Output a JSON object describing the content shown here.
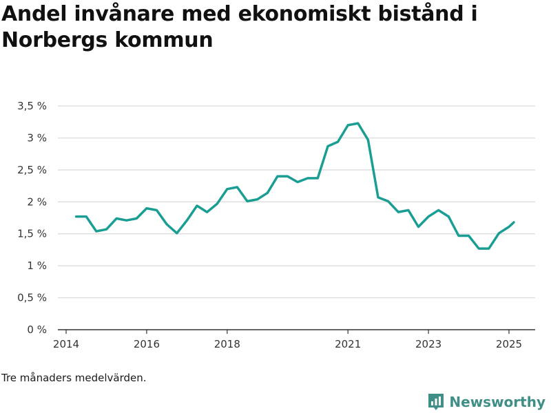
{
  "title": "Andel invånare med ekonomiskt bistånd i Norbergs kommun",
  "note": "Tre månaders medelvärden.",
  "brand": {
    "name": "Newsworthy",
    "icon": "newsworthy-logo-icon",
    "color": "#3f8f86"
  },
  "colors": {
    "line": "#1a9e94",
    "grid": "#d9d9d9",
    "axis": "#333333"
  },
  "chart_data": {
    "type": "line",
    "title": "Andel invånare med ekonomiskt bistånd i Norbergs kommun",
    "xlabel": "",
    "ylabel": "",
    "ylim": [
      0,
      3.5
    ],
    "xlim": [
      2014,
      2025.65
    ],
    "grid": true,
    "y_ticks": [
      0,
      0.5,
      1,
      1.5,
      2,
      2.5,
      3,
      3.5
    ],
    "y_tick_labels": [
      "0 %",
      "0,5 %",
      "1 %",
      "1,5 %",
      "2 %",
      "2,5 %",
      "3 %",
      "3,5 %"
    ],
    "x_ticks": [
      2014,
      2016,
      2018,
      2021,
      2023,
      2025
    ],
    "x_tick_labels": [
      "2014",
      "2016",
      "2018",
      "2021",
      "2023",
      "2025"
    ],
    "series": [
      {
        "x": [
          2014.25,
          2014.5,
          2014.75,
          2015.0,
          2015.25,
          2015.5,
          2015.75,
          2016.0,
          2016.25,
          2016.5,
          2016.75,
          2017.0,
          2017.25,
          2017.5,
          2017.75,
          2018.0,
          2018.25,
          2018.5,
          2018.75,
          2019.0,
          2019.25,
          2019.5,
          2019.75,
          2020.0,
          2020.25,
          2020.5,
          2020.75,
          2021.0,
          2021.25,
          2021.5,
          2021.75,
          2022.0,
          2022.25,
          2022.5,
          2022.75,
          2023.0,
          2023.25,
          2023.5,
          2023.75,
          2024.0,
          2024.25,
          2024.5,
          2024.75,
          2025.0,
          2025.12
        ],
        "values": [
          1.77,
          1.77,
          1.54,
          1.57,
          1.74,
          1.71,
          1.74,
          1.9,
          1.87,
          1.65,
          1.51,
          1.71,
          1.94,
          1.84,
          1.97,
          2.2,
          2.23,
          2.01,
          2.04,
          2.14,
          2.4,
          2.4,
          2.31,
          2.37,
          2.37,
          2.87,
          2.94,
          3.2,
          3.23,
          2.97,
          2.07,
          2.01,
          1.84,
          1.87,
          1.61,
          1.77,
          1.87,
          1.77,
          1.47,
          1.47,
          1.27,
          1.27,
          1.51,
          1.61,
          1.68
        ]
      }
    ]
  }
}
